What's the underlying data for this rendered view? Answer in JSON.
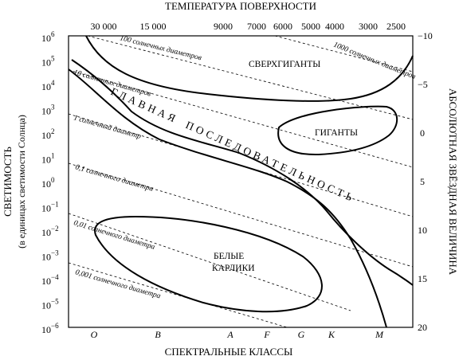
{
  "title_top": "ТЕМПЕРАТУРА ПОВЕРХНОСТИ",
  "title_bottom": "СПЕКТРАЛЬНЫЕ КЛАССЫ",
  "title_left_1": "СВЕТИМОСТЬ",
  "title_left_2": "(в единицах светимости Солнца)",
  "title_right": "АБСОЛЮТНАЯ ЗВЁЗДНАЯ ВЕЛИЧИНА",
  "temperature_ticks": [
    "30 000",
    "15 000",
    "9000",
    "7000",
    "6000",
    "5000",
    "4000",
    "3000",
    "2500"
  ],
  "luminosity_ticks": [
    {
      "base": "10",
      "exp": "6"
    },
    {
      "base": "10",
      "exp": "5"
    },
    {
      "base": "10",
      "exp": "4"
    },
    {
      "base": "10",
      "exp": "3"
    },
    {
      "base": "10",
      "exp": "2"
    },
    {
      "base": "10",
      "exp": "1"
    },
    {
      "base": "10",
      "exp": "0"
    },
    {
      "base": "10",
      "exp": "−1"
    },
    {
      "base": "10",
      "exp": "−2"
    },
    {
      "base": "10",
      "exp": "−3"
    },
    {
      "base": "10",
      "exp": "−4"
    },
    {
      "base": "10",
      "exp": "−5"
    },
    {
      "base": "10",
      "exp": "−6"
    }
  ],
  "magnitude_ticks": [
    "−10",
    "−5",
    "0",
    "5",
    "10",
    "15",
    "20"
  ],
  "spectral_classes": [
    "O",
    "B",
    "A",
    "F",
    "G",
    "K",
    "M"
  ],
  "diameter_labels": [
    "100 солнечных диаметров",
    "1000 солнечных диаметров",
    "10 солнечных диаметров",
    "1 солнечный диаметр",
    "0,1 солнечного диаметра",
    "0,01 солнечного диаметра",
    "0,001 солнечного диаметра"
  ],
  "regions": {
    "supergiants": "СВЕРХГИГАНТЫ",
    "giants": "ГИГАНТЫ",
    "main_sequence_1": "ГЛАВНАЯ",
    "main_sequence_2": "ПОСЛЕДОВАТЕЛЬНОСТЬ",
    "white_dwarfs_1": "БЕЛЫЕ",
    "white_dwarfs_2": "КАРЛИКИ"
  }
}
